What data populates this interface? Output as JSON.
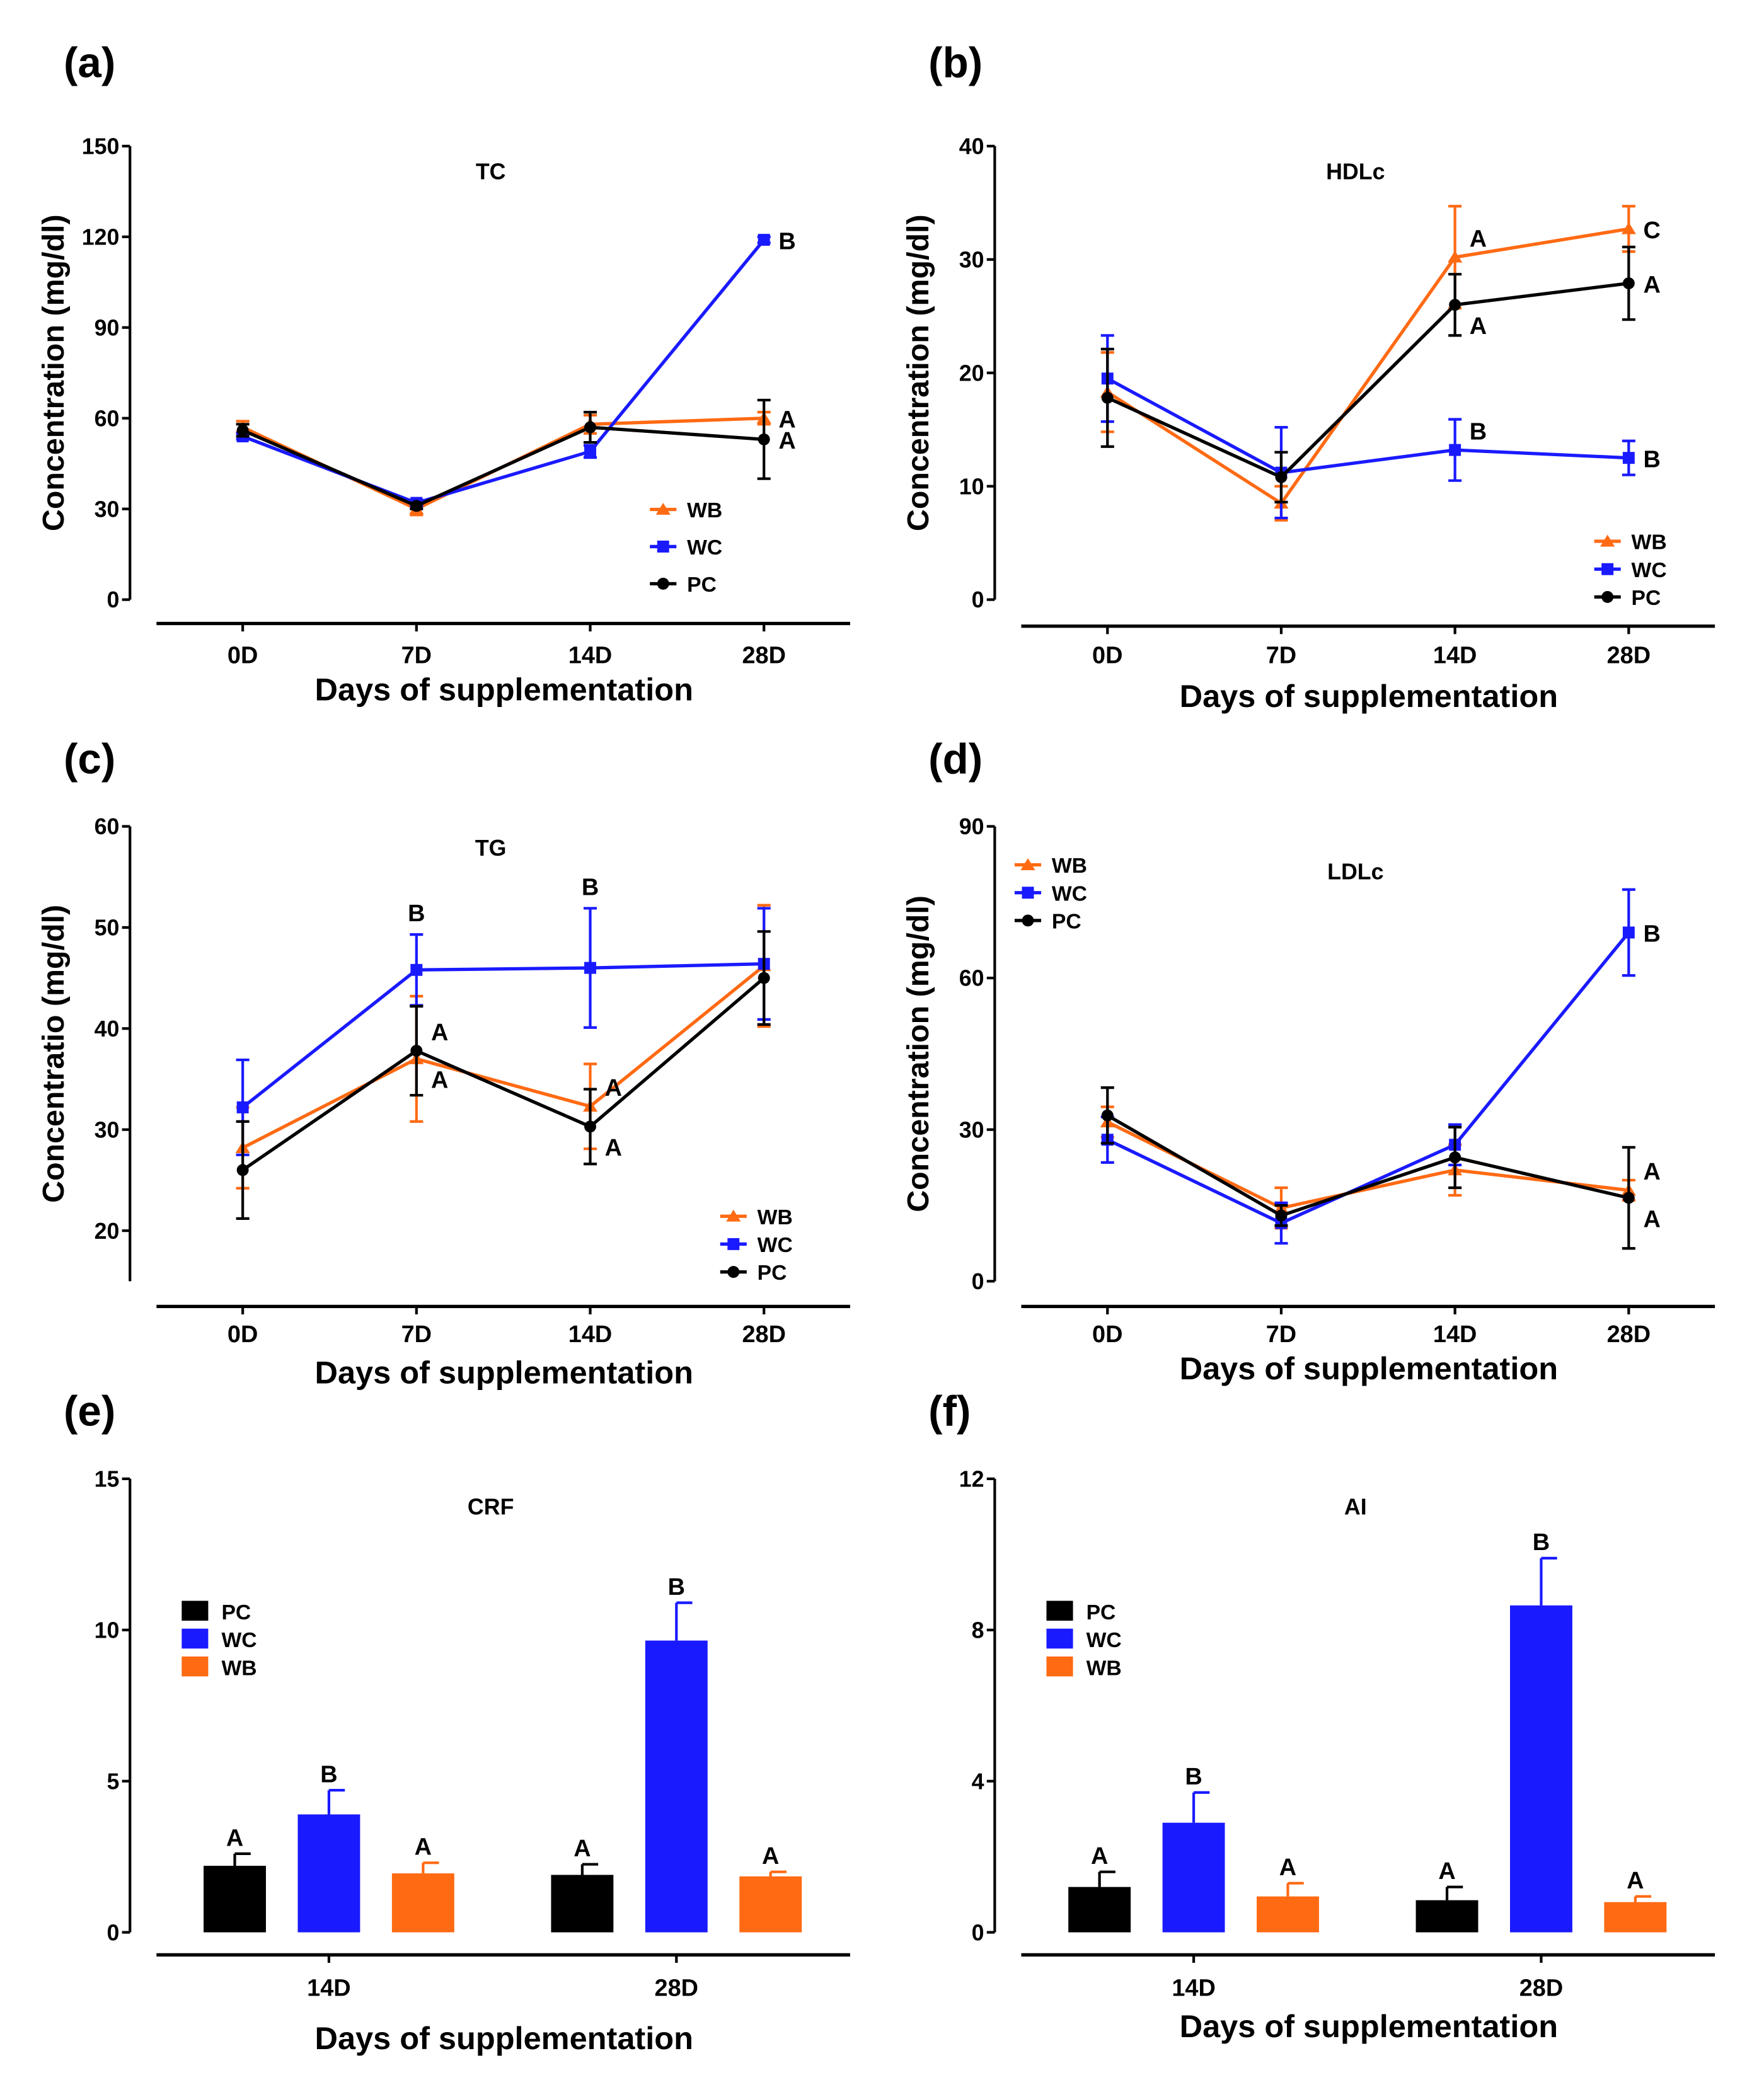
{
  "colors": {
    "WB": "#ff6a13",
    "WC": "#1a1aff",
    "PC": "#000000"
  },
  "chart_data": [
    {
      "panel": "(a)",
      "type": "line",
      "title": "TC",
      "xlabel": "Days of supplementation",
      "ylabel": "Concentration (mg/dl)",
      "categories": [
        "0D",
        "7D",
        "14D",
        "28D"
      ],
      "ylim": [
        0,
        150
      ],
      "yticks": [
        0,
        30,
        60,
        90,
        120,
        150
      ],
      "legend": "bottom-right",
      "series": [
        {
          "name": "WB",
          "marker": "triangle",
          "values": [
            57,
            30,
            58,
            60
          ],
          "error": [
            2,
            2,
            3,
            2
          ]
        },
        {
          "name": "WC",
          "marker": "square",
          "values": [
            54,
            32,
            49,
            119
          ],
          "error": [
            1,
            1,
            2,
            1
          ]
        },
        {
          "name": "PC",
          "marker": "circle",
          "values": [
            56,
            31,
            57,
            53
          ],
          "error": [
            2,
            1,
            5,
            13
          ]
        }
      ],
      "annotations": [
        {
          "series": "WC",
          "x": "28D",
          "text": "B",
          "pos": "right"
        },
        {
          "series": "WB",
          "x": "28D",
          "text": "A",
          "pos": "right"
        },
        {
          "series": "PC",
          "x": "28D",
          "text": "A",
          "pos": "right"
        }
      ]
    },
    {
      "panel": "(b)",
      "type": "line",
      "title": "HDLc",
      "xlabel": "Days of supplementation",
      "ylabel": "Concentration (mg/dl)",
      "categories": [
        "0D",
        "7D",
        "14D",
        "28D"
      ],
      "ylim": [
        0,
        40
      ],
      "yticks": [
        0,
        10,
        20,
        30,
        40
      ],
      "legend": "bottom-right",
      "series": [
        {
          "name": "WB",
          "marker": "triangle",
          "values": [
            18.3,
            8.5,
            30.2,
            32.7
          ],
          "error": [
            3.5,
            1.5,
            4.5,
            2
          ]
        },
        {
          "name": "WC",
          "marker": "square",
          "values": [
            19.5,
            11.2,
            13.2,
            12.5
          ],
          "error": [
            3.8,
            4,
            2.7,
            1.5
          ]
        },
        {
          "name": "PC",
          "marker": "circle",
          "values": [
            17.8,
            10.8,
            26,
            27.9
          ],
          "error": [
            4.3,
            2.2,
            2.7,
            3.2
          ]
        }
      ],
      "annotations": [
        {
          "series": "WB",
          "x": "14D",
          "text": "A",
          "pos": "right-up"
        },
        {
          "series": "PC",
          "x": "14D",
          "text": "A",
          "pos": "right-down"
        },
        {
          "series": "WC",
          "x": "14D",
          "text": "B",
          "pos": "right-up"
        },
        {
          "series": "WB",
          "x": "28D",
          "text": "C",
          "pos": "right"
        },
        {
          "series": "PC",
          "x": "28D",
          "text": "A",
          "pos": "right"
        },
        {
          "series": "WC",
          "x": "28D",
          "text": "B",
          "pos": "right"
        }
      ]
    },
    {
      "panel": "(c)",
      "type": "line",
      "title": "TG",
      "xlabel": "Days of supplementation",
      "ylabel": "Concentratio (mg/dl)",
      "categories": [
        "0D",
        "7D",
        "14D",
        "28D"
      ],
      "ylim": [
        15,
        60
      ],
      "yticks": [
        20,
        30,
        40,
        50,
        60
      ],
      "legend": "bottom-right",
      "series": [
        {
          "name": "WB",
          "marker": "triangle",
          "values": [
            28.2,
            37,
            32.3,
            46.2
          ],
          "error": [
            4,
            6.2,
            4.2,
            6
          ]
        },
        {
          "name": "WC",
          "marker": "square",
          "values": [
            32.2,
            45.8,
            46,
            46.4
          ],
          "error": [
            4.7,
            3.5,
            5.9,
            5.5
          ]
        },
        {
          "name": "PC",
          "marker": "circle",
          "values": [
            26,
            37.8,
            30.3,
            45
          ],
          "error": [
            4.8,
            4.4,
            3.7,
            4.6
          ]
        }
      ],
      "annotations": [
        {
          "series": "WC",
          "x": "7D",
          "text": "B",
          "pos": "above"
        },
        {
          "series": "WC",
          "x": "14D",
          "text": "B",
          "pos": "above"
        },
        {
          "series": "PC",
          "x": "7D",
          "text": "A",
          "pos": "right-up"
        },
        {
          "series": "WB",
          "x": "7D",
          "text": "A",
          "pos": "right-down"
        },
        {
          "series": "WB",
          "x": "14D",
          "text": "A",
          "pos": "right-up"
        },
        {
          "series": "PC",
          "x": "14D",
          "text": "A",
          "pos": "right-down"
        }
      ]
    },
    {
      "panel": "(d)",
      "type": "line",
      "title": "LDLc",
      "xlabel": "Days of supplementation",
      "ylabel": "Concentration (mg/dl)",
      "categories": [
        "0D",
        "7D",
        "14D",
        "28D"
      ],
      "ylim": [
        0,
        90
      ],
      "yticks": [
        0,
        30,
        60,
        90
      ],
      "legend": "top-left",
      "series": [
        {
          "name": "WB",
          "marker": "triangle",
          "values": [
            31.5,
            14.5,
            22,
            18
          ],
          "error": [
            3,
            4,
            5,
            2
          ]
        },
        {
          "name": "WC",
          "marker": "square",
          "values": [
            28,
            11.5,
            27,
            69
          ],
          "error": [
            4.5,
            4,
            4,
            8.5
          ]
        },
        {
          "name": "PC",
          "marker": "circle",
          "values": [
            32.8,
            13,
            24.5,
            16.5
          ],
          "error": [
            5.5,
            2,
            6,
            10
          ]
        }
      ],
      "annotations": [
        {
          "series": "WC",
          "x": "28D",
          "text": "B",
          "pos": "right"
        },
        {
          "series": "WB",
          "x": "28D",
          "text": "A",
          "pos": "right-up"
        },
        {
          "series": "PC",
          "x": "28D",
          "text": "A",
          "pos": "right-down"
        }
      ]
    },
    {
      "panel": "(e)",
      "type": "bar",
      "title": "CRF",
      "xlabel": "Days of supplementation",
      "ylabel": "",
      "categories": [
        "14D",
        "28D"
      ],
      "ylim": [
        0,
        15
      ],
      "yticks": [
        0,
        5,
        10,
        15
      ],
      "legend": "top-left",
      "series": [
        {
          "name": "PC",
          "values": [
            2.2,
            1.9
          ],
          "error": [
            0.4,
            0.35
          ],
          "letters": [
            "A",
            "A"
          ]
        },
        {
          "name": "WC",
          "values": [
            3.9,
            9.65
          ],
          "error": [
            0.8,
            1.25
          ],
          "letters": [
            "B",
            "B"
          ]
        },
        {
          "name": "WB",
          "values": [
            1.95,
            1.85
          ],
          "error": [
            0.35,
            0.15
          ],
          "letters": [
            "A",
            "A"
          ]
        }
      ]
    },
    {
      "panel": "(f)",
      "type": "bar",
      "title": "AI",
      "xlabel": "Days of supplementation",
      "ylabel": "",
      "categories": [
        "14D",
        "28D"
      ],
      "ylim": [
        0,
        12
      ],
      "yticks": [
        0,
        4,
        8,
        12
      ],
      "legend": "top-left",
      "series": [
        {
          "name": "PC",
          "values": [
            1.2,
            0.85
          ],
          "error": [
            0.4,
            0.35
          ],
          "letters": [
            "A",
            "A"
          ]
        },
        {
          "name": "WC",
          "values": [
            2.9,
            8.65
          ],
          "error": [
            0.8,
            1.25
          ],
          "letters": [
            "B",
            "B"
          ]
        },
        {
          "name": "WB",
          "values": [
            0.95,
            0.8
          ],
          "error": [
            0.35,
            0.15
          ],
          "letters": [
            "A",
            "A"
          ]
        }
      ]
    }
  ]
}
